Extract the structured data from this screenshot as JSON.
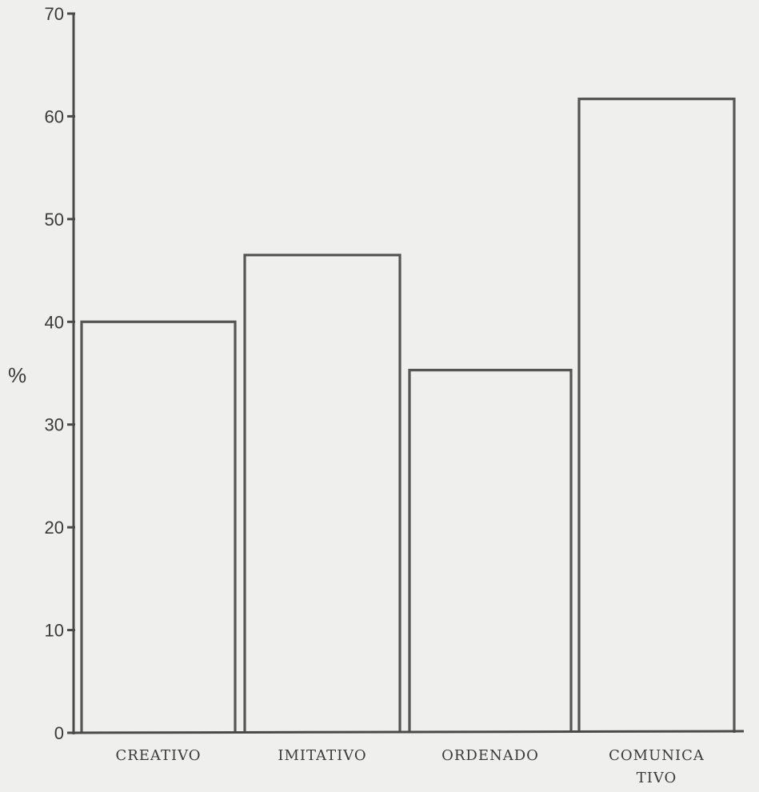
{
  "chart_data": {
    "type": "bar",
    "title": "",
    "xlabel": "",
    "ylabel": "%",
    "ylim": [
      0,
      70
    ],
    "yticks": [
      "0",
      "10",
      "20",
      "30",
      "40",
      "50",
      "60",
      "70"
    ],
    "grid": false,
    "legend": "none",
    "categories": [
      {
        "line1": "CREATIVO",
        "line2": ""
      },
      {
        "line1": "IMITATIVO",
        "line2": ""
      },
      {
        "line1": "ORDENADO",
        "line2": ""
      },
      {
        "line1": "COMUNICA",
        "line2": "TIVO"
      }
    ],
    "values": [
      40,
      46.5,
      35.3,
      61.7
    ],
    "colors": {
      "stroke": "#555555",
      "fill": "none",
      "axis": "#4a4a4a"
    }
  }
}
